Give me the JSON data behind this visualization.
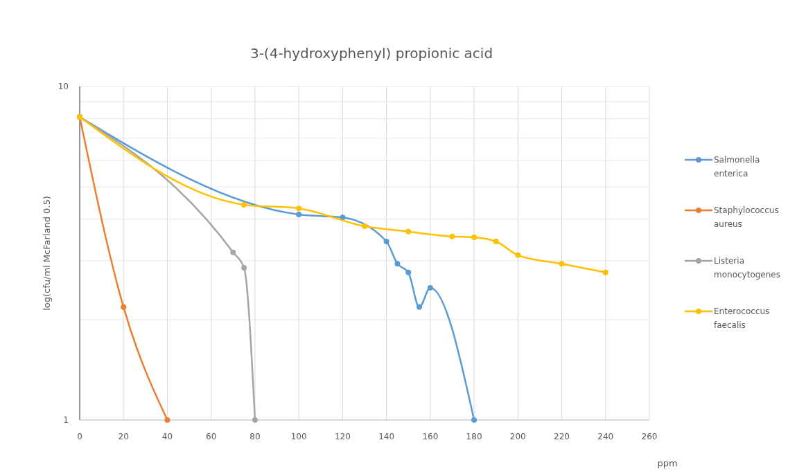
{
  "chart_data": {
    "type": "line",
    "title": "3-(4-hydroxyphenyl) propionic acid",
    "xlabel": "ppm",
    "ylabel": "log(cfu/ml McFarland 0.5)",
    "xlim": [
      0,
      260
    ],
    "xticks": [
      0,
      20,
      40,
      60,
      80,
      100,
      120,
      140,
      160,
      180,
      200,
      220,
      240,
      260
    ],
    "ylim": [
      1,
      10
    ],
    "yticks": [
      1,
      {
        "value": 2,
        "label": null
      },
      {
        "value": 3,
        "label": null
      },
      {
        "value": 4,
        "label": null
      },
      {
        "value": 5,
        "label": null
      },
      {
        "value": 6,
        "label": null
      },
      {
        "value": 7,
        "label": null
      },
      {
        "value": 8,
        "label": null
      },
      {
        "value": 9,
        "label": null
      },
      10
    ],
    "log": "y",
    "grid": true,
    "legend": "right",
    "marker": "circle",
    "series": [
      {
        "name": "Salmonella enterica",
        "color": "#5b9bd5",
        "x": [
          0,
          100,
          120,
          140,
          145,
          150,
          155,
          160,
          180
        ],
        "values": [
          8.1,
          4.13,
          4.05,
          3.43,
          2.94,
          2.77,
          2.18,
          2.49,
          1
        ]
      },
      {
        "name": "Staphylococcus aureus",
        "color": "#ed7d31",
        "x": [
          0,
          20,
          40
        ],
        "values": [
          8.1,
          2.18,
          1
        ]
      },
      {
        "name": "Listeria monocytogenes",
        "color": "#a5a5a5",
        "x": [
          0,
          70,
          75,
          80
        ],
        "values": [
          8.1,
          3.18,
          2.86,
          1
        ]
      },
      {
        "name": "Enterococcus faecalis",
        "color": "#ffc000",
        "x": [
          0,
          75,
          100,
          130,
          150,
          170,
          180,
          190,
          200,
          220,
          240
        ],
        "values": [
          8.1,
          4.42,
          4.31,
          3.81,
          3.67,
          3.55,
          3.53,
          3.43,
          3.12,
          2.94,
          2.77
        ]
      }
    ]
  }
}
